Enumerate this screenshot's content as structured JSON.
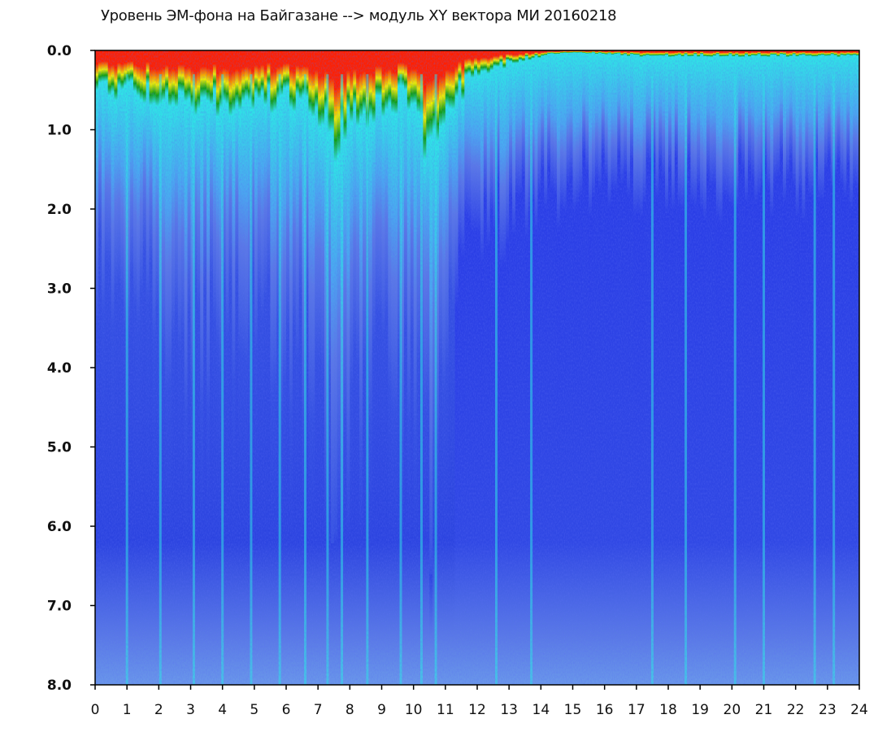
{
  "chart_data": {
    "type": "heatmap",
    "title": "Уровень ЭМ-фона на Байгазане   --> модуль XY вектора МИ  20160218",
    "xlabel": "",
    "ylabel": "",
    "xlim": [
      0,
      24
    ],
    "ylim": [
      8.0,
      0.0
    ],
    "x_ticks": [
      0,
      1,
      2,
      3,
      4,
      5,
      6,
      7,
      8,
      9,
      10,
      11,
      12,
      13,
      14,
      15,
      16,
      17,
      18,
      19,
      20,
      21,
      22,
      23,
      24
    ],
    "x_tick_labels": [
      "0",
      "1",
      "2",
      "3",
      "4",
      "5",
      "6",
      "7",
      "8",
      "9",
      "10",
      "11",
      "12",
      "13",
      "14",
      "15",
      "16",
      "17",
      "18",
      "19",
      "20",
      "21",
      "22",
      "23",
      "24"
    ],
    "y_ticks": [
      0,
      1,
      2,
      3,
      4,
      5,
      6,
      7,
      8
    ],
    "y_tick_labels": [
      "0.0",
      "1.0",
      "2.0",
      "3.0",
      "4.0",
      "5.0",
      "6.0",
      "7.0",
      "8.0"
    ],
    "grid": false,
    "colormap": [
      "#1020e0",
      "#5a78e6",
      "#2ee6e6",
      "#10a010",
      "#f0f000",
      "#ff2000"
    ],
    "intensity_profile": {
      "x": [
        0,
        1,
        2,
        3,
        4,
        5,
        6,
        7,
        7.5,
        8,
        9,
        10,
        10.5,
        11,
        12,
        13,
        14,
        15,
        16,
        17,
        18,
        19,
        20,
        21,
        22,
        23,
        24
      ],
      "hot_depth": [
        0.35,
        0.4,
        0.45,
        0.5,
        0.5,
        0.45,
        0.5,
        0.6,
        0.9,
        0.7,
        0.5,
        0.45,
        1.1,
        0.55,
        0.2,
        0.12,
        0.05,
        0.02,
        0.03,
        0.05,
        0.05,
        0.05,
        0.05,
        0.05,
        0.05,
        0.05,
        0.05
      ],
      "cyan_depth": [
        1.3,
        1.4,
        1.6,
        1.8,
        1.7,
        1.6,
        1.7,
        1.9,
        2.5,
        2.2,
        1.9,
        1.8,
        2.8,
        1.5,
        1.0,
        1.0,
        0.9,
        0.8,
        0.8,
        0.8,
        0.8,
        0.8,
        0.8,
        0.8,
        0.8,
        0.8,
        0.8
      ]
    },
    "bright_streaks_x": [
      1.0,
      2.05,
      3.1,
      4.0,
      4.9,
      5.8,
      6.6,
      7.3,
      7.75,
      8.55,
      9.6,
      10.25,
      10.7,
      12.6,
      13.7,
      17.5,
      18.55,
      20.1,
      21.0,
      22.6,
      23.2
    ]
  }
}
